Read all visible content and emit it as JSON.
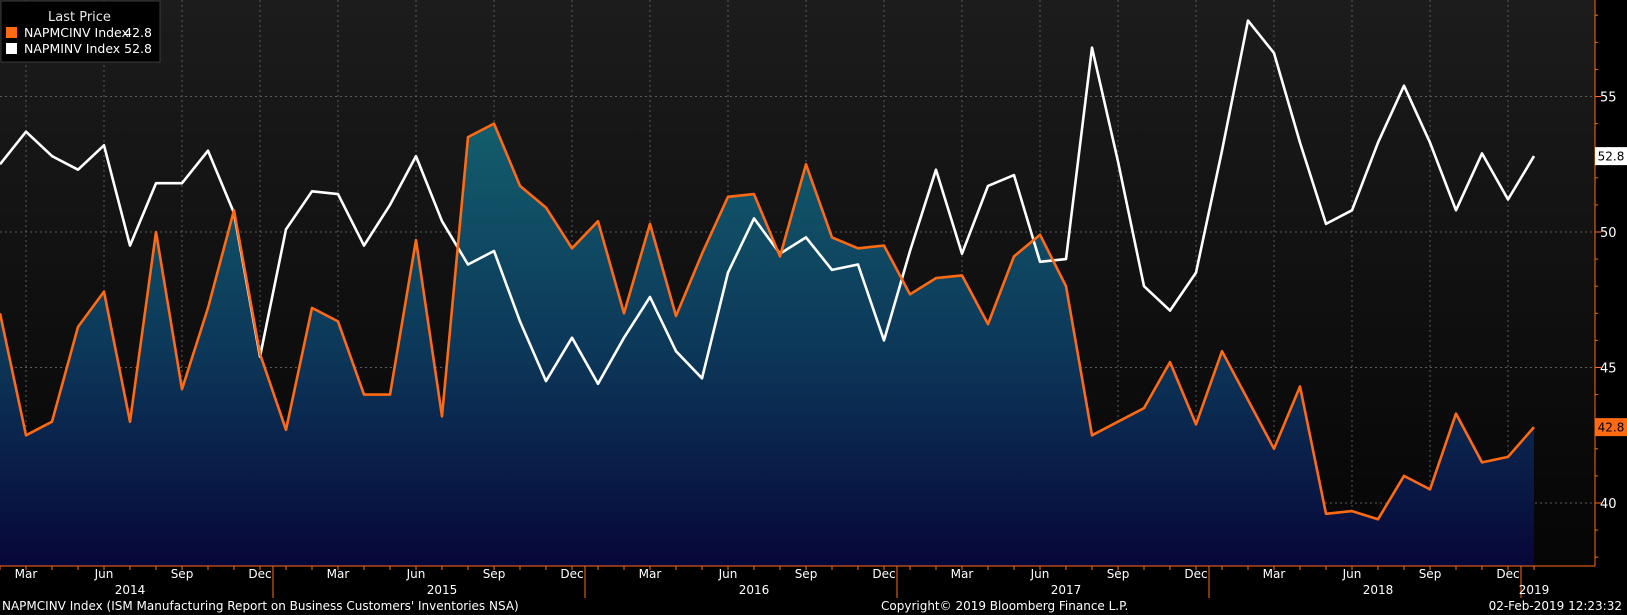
{
  "chart_data": {
    "type": "area",
    "legend": {
      "title": "Last Price",
      "placement": "top-left",
      "entries": [
        {
          "label": "NAPMCINV Index",
          "value": "42.8",
          "color": "#ff6a13"
        },
        {
          "label": "NAPMINV Index",
          "value": "52.8",
          "color": "#ffffff"
        }
      ]
    },
    "x": [
      "2014-02",
      "2014-03",
      "2014-04",
      "2014-05",
      "2014-06",
      "2014-07",
      "2014-08",
      "2014-09",
      "2014-10",
      "2014-11",
      "2014-12",
      "2015-01",
      "2015-02",
      "2015-03",
      "2015-04",
      "2015-05",
      "2015-06",
      "2015-07",
      "2015-08",
      "2015-09",
      "2015-10",
      "2015-11",
      "2015-12",
      "2016-01",
      "2016-02",
      "2016-03",
      "2016-04",
      "2016-05",
      "2016-06",
      "2016-07",
      "2016-08",
      "2016-09",
      "2016-10",
      "2016-11",
      "2016-12",
      "2017-01",
      "2017-02",
      "2017-03",
      "2017-04",
      "2017-05",
      "2017-06",
      "2017-07",
      "2017-08",
      "2017-09",
      "2017-10",
      "2017-11",
      "2017-12",
      "2018-01",
      "2018-02",
      "2018-03",
      "2018-04",
      "2018-05",
      "2018-06",
      "2018-07",
      "2018-08",
      "2018-09",
      "2018-10",
      "2018-11",
      "2018-12",
      "2019-01"
    ],
    "series": [
      {
        "name": "NAPMCINV Index",
        "color": "#ff6a13",
        "fill": "gradient-teal-navy",
        "values": [
          47.0,
          42.5,
          43.0,
          46.5,
          47.8,
          43.0,
          50.0,
          44.2,
          47.2,
          50.8,
          45.5,
          42.7,
          47.2,
          46.7,
          44.0,
          44.0,
          49.7,
          43.2,
          53.5,
          54.0,
          51.7,
          50.9,
          49.4,
          50.4,
          47.0,
          50.3,
          46.9,
          49.2,
          51.3,
          51.4,
          49.1,
          52.5,
          49.8,
          49.4,
          49.5,
          47.7,
          48.3,
          48.4,
          46.6,
          49.1,
          49.9,
          48.0,
          42.5,
          43.0,
          43.5,
          45.2,
          42.9,
          45.6,
          43.8,
          42.0,
          44.3,
          39.6,
          39.7,
          39.4,
          41.0,
          40.5,
          43.3,
          41.5,
          41.7,
          42.8
        ]
      },
      {
        "name": "NAPMINV Index",
        "color": "#ffffff",
        "values": [
          52.5,
          53.7,
          52.8,
          52.3,
          53.2,
          49.5,
          51.8,
          51.8,
          53.0,
          50.7,
          45.4,
          50.1,
          51.5,
          51.4,
          49.5,
          51.0,
          52.8,
          50.4,
          48.8,
          49.3,
          46.7,
          44.5,
          46.1,
          44.4,
          46.1,
          47.6,
          45.6,
          44.6,
          48.5,
          50.5,
          49.2,
          49.8,
          48.6,
          48.8,
          46.0,
          49.3,
          52.3,
          49.2,
          51.7,
          52.1,
          48.9,
          49.0,
          56.8,
          52.6,
          48.0,
          47.1,
          48.5,
          53.0,
          57.8,
          56.6,
          53.3,
          50.3,
          50.8,
          53.3,
          55.4,
          53.3,
          50.8,
          52.9,
          51.2,
          52.8
        ]
      }
    ],
    "y_axis": {
      "position": "right",
      "ticks": [
        40,
        45,
        50,
        55
      ],
      "range": [
        37.4,
        58.8
      ]
    },
    "x_axis": {
      "month_ticks": [
        {
          "label": "Mar",
          "x": "2014-03"
        },
        {
          "label": "Jun",
          "x": "2014-06"
        },
        {
          "label": "Sep",
          "x": "2014-09"
        },
        {
          "label": "Dec",
          "x": "2014-12"
        },
        {
          "label": "Mar",
          "x": "2015-03"
        },
        {
          "label": "Jun",
          "x": "2015-06"
        },
        {
          "label": "Sep",
          "x": "2015-09"
        },
        {
          "label": "Dec",
          "x": "2015-12"
        },
        {
          "label": "Mar",
          "x": "2016-03"
        },
        {
          "label": "Jun",
          "x": "2016-06"
        },
        {
          "label": "Sep",
          "x": "2016-09"
        },
        {
          "label": "Dec",
          "x": "2016-12"
        },
        {
          "label": "Mar",
          "x": "2017-03"
        },
        {
          "label": "Jun",
          "x": "2017-06"
        },
        {
          "label": "Sep",
          "x": "2017-09"
        },
        {
          "label": "Dec",
          "x": "2017-12"
        },
        {
          "label": "Mar",
          "x": "2018-03"
        },
        {
          "label": "Jun",
          "x": "2018-06"
        },
        {
          "label": "Sep",
          "x": "2018-09"
        },
        {
          "label": "Dec",
          "x": "2018-12"
        }
      ],
      "year_labels": [
        {
          "label": "2014",
          "x": "2014-07"
        },
        {
          "label": "2015",
          "x": "2015-07"
        },
        {
          "label": "2016",
          "x": "2016-07"
        },
        {
          "label": "2017",
          "x": "2017-07"
        },
        {
          "label": "2018",
          "x": "2018-07"
        },
        {
          "label": "2019",
          "x": "2019-01"
        }
      ]
    },
    "grid": true,
    "last_value_tags": [
      {
        "series": "NAPMINV Index",
        "text": "52.8",
        "bg": "#ffffff",
        "fg": "#000000"
      },
      {
        "series": "NAPMCINV Index",
        "text": "42.8",
        "bg": "#ff6a13",
        "fg": "#000000"
      }
    ]
  },
  "footer": {
    "description": "NAPMCINV Index (ISM Manufacturing Report on Business Customers' Inventories NSA)",
    "copyright": "Copyright© 2019 Bloomberg Finance L.P.",
    "timestamp": "02-Feb-2019 12:23:32"
  },
  "colors": {
    "background_top": "#1a1a1a",
    "background_bottom": "#050505",
    "area_top": "#13606e",
    "area_bottom": "#0a0a3a"
  }
}
